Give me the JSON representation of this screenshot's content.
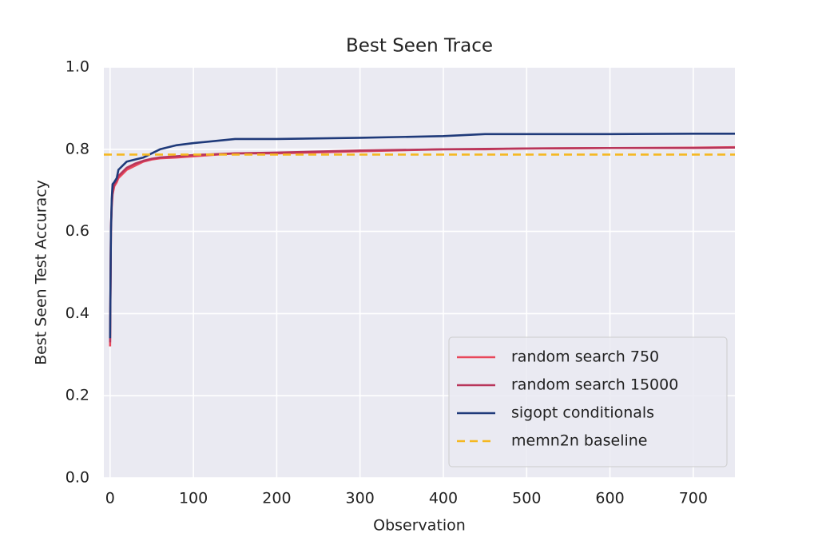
{
  "chart_data": {
    "type": "line",
    "title": "Best Seen Trace",
    "x_label": "Observation",
    "y_label": "Best Seen Test Accuracy",
    "x": [
      0,
      1,
      2,
      3,
      5,
      8,
      10,
      15,
      20,
      30,
      40,
      50,
      60,
      80,
      100,
      150,
      200,
      300,
      400,
      450,
      500,
      600,
      700,
      750
    ],
    "series": [
      {
        "name": "random search 750",
        "color": "#e8475a",
        "values": [
          0.32,
          0.6,
          0.66,
          0.69,
          0.71,
          0.72,
          0.73,
          0.74,
          0.75,
          0.76,
          0.77,
          0.775,
          0.778,
          0.78,
          0.783,
          0.79,
          0.79,
          0.795,
          0.8,
          0.8,
          0.802,
          0.803,
          0.804,
          0.805
        ]
      },
      {
        "name": "random search 15000",
        "color": "#b8355a",
        "values": [
          0.33,
          0.61,
          0.67,
          0.7,
          0.715,
          0.725,
          0.735,
          0.745,
          0.755,
          0.765,
          0.772,
          0.777,
          0.78,
          0.783,
          0.786,
          0.79,
          0.792,
          0.797,
          0.8,
          0.801,
          0.802,
          0.803,
          0.803,
          0.804
        ]
      },
      {
        "name": "sigopt conditionals",
        "color": "#1f3a7a",
        "values": [
          0.34,
          0.6,
          0.68,
          0.715,
          0.72,
          0.73,
          0.75,
          0.76,
          0.77,
          0.775,
          0.78,
          0.79,
          0.8,
          0.81,
          0.815,
          0.825,
          0.825,
          0.828,
          0.832,
          0.837,
          0.837,
          0.837,
          0.838,
          0.838
        ]
      },
      {
        "name": "memn2n baseline",
        "color": "#f5b821",
        "dashed": true,
        "x": [
          -7.5,
          750
        ],
        "values": [
          0.787,
          0.787
        ]
      }
    ],
    "xlim": [
      -7.5,
      750
    ],
    "ylim": [
      0,
      1
    ],
    "xticks": [
      0,
      100,
      200,
      300,
      400,
      500,
      600,
      700
    ],
    "yticks": [
      {
        "value": 0,
        "label": "0.0"
      },
      0.2,
      0.4,
      0.6,
      0.8,
      {
        "value": 1,
        "label": "1.0"
      }
    ],
    "grid": true,
    "legend": "lower right"
  }
}
